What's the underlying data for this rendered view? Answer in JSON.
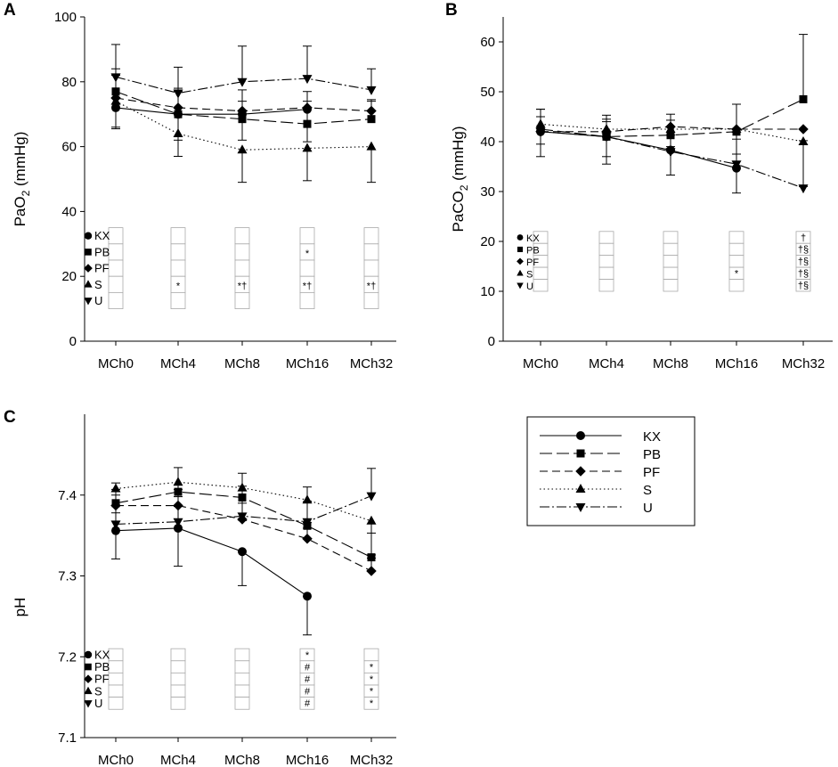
{
  "figure": {
    "panels": [
      "A",
      "B",
      "C"
    ]
  },
  "series_order": [
    "KX",
    "PB",
    "PF",
    "S",
    "U"
  ],
  "markers": {
    "KX": "circle",
    "PB": "square",
    "PF": "diamond",
    "S": "triangle-up",
    "U": "triangle-down"
  },
  "dashes": {
    "KX": "",
    "PB": "14,5",
    "PF": "9,5",
    "S": "1.5,3",
    "U": "11,3,2,3"
  },
  "errbar_dir": {
    "KX": "down",
    "PB": "up",
    "PF": "up",
    "S": "down",
    "U": "up"
  },
  "legend": {
    "entries": [
      {
        "key": "KX",
        "label": "KX"
      },
      {
        "key": "PB",
        "label": "PB"
      },
      {
        "key": "PF",
        "label": "PF"
      },
      {
        "key": "S",
        "label": "S"
      },
      {
        "key": "U",
        "label": "U"
      }
    ]
  },
  "chart_data": [
    {
      "id": "A",
      "type": "line",
      "panel_label": "A",
      "ylabel_base": "PaO",
      "ylabel_sub": "2",
      "ylabel_tail": " (mmHg)",
      "categories": [
        "MCh0",
        "MCh4",
        "MCh8",
        "MCh16",
        "MCh32"
      ],
      "ylim": [
        0,
        100
      ],
      "yticks": [
        "0",
        "20",
        "40",
        "60",
        "80",
        "100"
      ],
      "sig_box_range": [
        10,
        35
      ],
      "series": [
        {
          "name": "KX",
          "values": [
            72,
            70,
            70,
            71.5,
            null
          ],
          "err": [
            6.5,
            8,
            8,
            10,
            null
          ]
        },
        {
          "name": "PB",
          "values": [
            77,
            70,
            68.5,
            67,
            68.5
          ],
          "err": [
            7,
            8,
            9,
            7,
            6
          ]
        },
        {
          "name": "PF",
          "values": [
            75,
            72,
            71,
            72,
            71
          ],
          "err": [
            7,
            5,
            3,
            5,
            3
          ]
        },
        {
          "name": "S",
          "values": [
            74,
            64,
            59,
            59.5,
            60
          ],
          "err": [
            8,
            7,
            10,
            10,
            11
          ]
        },
        {
          "name": "U",
          "values": [
            81.5,
            76.5,
            80,
            81,
            77.5
          ],
          "err": [
            10,
            8,
            11,
            10,
            6.5
          ]
        }
      ],
      "sig_table": [
        [
          "",
          "",
          "",
          "",
          ""
        ],
        [
          "",
          "",
          "",
          "*",
          ""
        ],
        [
          "",
          "",
          "",
          "",
          ""
        ],
        [
          "",
          "*",
          "*†",
          "*†",
          "*†"
        ],
        [
          "",
          "",
          "",
          "",
          ""
        ]
      ]
    },
    {
      "id": "B",
      "type": "line",
      "panel_label": "B",
      "ylabel_base": "PaCO",
      "ylabel_sub": "2",
      "ylabel_tail": " (mmHg)",
      "categories": [
        "MCh0",
        "MCh4",
        "MCh8",
        "MCh16",
        "MCh32"
      ],
      "ylim": [
        0,
        65
      ],
      "yticks": [
        "0",
        "10",
        "20",
        "30",
        "40",
        "50",
        "60"
      ],
      "sig_box_range": [
        10,
        22
      ],
      "series": [
        {
          "name": "KX",
          "values": [
            42,
            41,
            38.3,
            34.7,
            null
          ],
          "err": [
            5,
            5.5,
            5,
            5,
            null
          ]
        },
        {
          "name": "PB",
          "values": [
            42.5,
            41,
            41.3,
            42,
            48.5
          ],
          "err": [
            4,
            3,
            3,
            5.5,
            13
          ]
        },
        {
          "name": "PF",
          "values": [
            42,
            42,
            43,
            42.5,
            42.5
          ],
          "err": [
            3,
            2.5,
            2.5,
            5,
            0
          ]
        },
        {
          "name": "S",
          "values": [
            43.5,
            42.5,
            42.5,
            42.5,
            40
          ],
          "err": [
            4,
            5.5,
            3.5,
            5,
            9
          ]
        },
        {
          "name": "U",
          "values": [
            42,
            41,
            38,
            35.5,
            30.7
          ],
          "err": [
            4.5,
            4.3,
            3.3,
            5,
            9.5
          ]
        }
      ],
      "sig_table": [
        [
          "",
          "",
          "",
          "",
          "†"
        ],
        [
          "",
          "",
          "",
          "",
          "†§"
        ],
        [
          "",
          "",
          "",
          "",
          "†§"
        ],
        [
          "",
          "",
          "",
          "*",
          "†§"
        ],
        [
          "",
          "",
          "",
          "",
          "†§"
        ]
      ]
    },
    {
      "id": "C",
      "type": "line",
      "panel_label": "C",
      "ylabel_base": "pH",
      "ylabel_sub": "",
      "ylabel_tail": "",
      "categories": [
        "MCh0",
        "MCh4",
        "MCh8",
        "MCh16",
        "MCh32"
      ],
      "ylim": [
        7.1,
        7.5
      ],
      "yticks": [
        "7.1",
        "7.2",
        "7.3",
        "7.4"
      ],
      "sig_box_range": [
        7.135,
        7.21
      ],
      "series": [
        {
          "name": "KX",
          "values": [
            7.356,
            7.359,
            7.33,
            7.275,
            null
          ],
          "err": [
            0.035,
            0.047,
            0.042,
            0.048,
            null
          ]
        },
        {
          "name": "PB",
          "values": [
            7.39,
            7.404,
            7.397,
            7.362,
            7.323
          ],
          "err": [
            0.025,
            0.03,
            0.03,
            0.03,
            0.03
          ]
        },
        {
          "name": "PF",
          "values": [
            7.387,
            7.387,
            7.37,
            7.346,
            7.306
          ],
          "err": [
            0.02,
            0.02,
            0.02,
            0.02,
            0.02
          ]
        },
        {
          "name": "S",
          "values": [
            7.408,
            7.416,
            7.409,
            7.394,
            7.368
          ],
          "err": [
            0.03,
            0.03,
            0.04,
            0.035,
            0.046
          ]
        },
        {
          "name": "U",
          "values": [
            7.364,
            7.367,
            7.374,
            7.367,
            7.399
          ],
          "err": [
            0.036,
            0.031,
            0.037,
            0.043,
            0.034
          ]
        }
      ],
      "sig_table": [
        [
          "",
          "",
          "",
          "*",
          ""
        ],
        [
          "",
          "",
          "",
          "#",
          "*"
        ],
        [
          "",
          "",
          "",
          "#",
          "*"
        ],
        [
          "",
          "",
          "",
          "#",
          "*"
        ],
        [
          "",
          "",
          "",
          "#",
          "*"
        ]
      ]
    }
  ]
}
